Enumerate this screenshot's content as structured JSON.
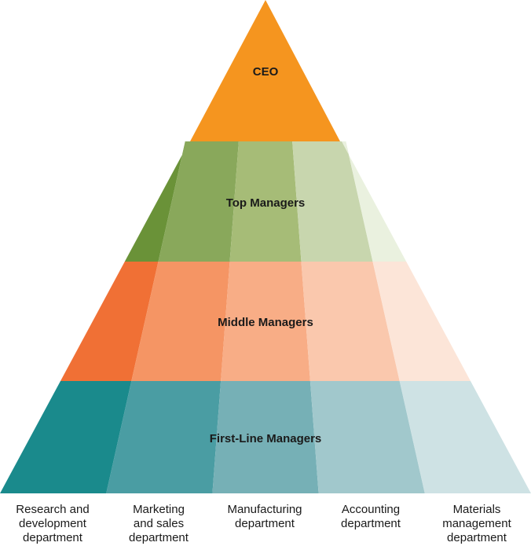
{
  "levels": [
    {
      "id": "ceo",
      "label": "CEO",
      "colors": [
        "#F5951F"
      ]
    },
    {
      "id": "top",
      "label": "Top Managers",
      "colors": [
        "#6A9238",
        "#89A85B",
        "#A6BC77",
        "#C8D6AE",
        "#EAF1DF"
      ]
    },
    {
      "id": "middle",
      "label": "Middle Managers",
      "colors": [
        "#F07035",
        "#F59564",
        "#F8AD86",
        "#FAC8AD",
        "#FCE5D8"
      ]
    },
    {
      "id": "first",
      "label": "First-Line Managers",
      "colors": [
        "#1A8A8C",
        "#4A9DA3",
        "#76B0B6",
        "#A1C8CC",
        "#CEE2E4"
      ]
    }
  ],
  "departments": [
    {
      "lines": [
        "Research and",
        "development",
        "department"
      ]
    },
    {
      "lines": [
        "Marketing",
        "and sales",
        "department"
      ]
    },
    {
      "lines": [
        "Manufacturing",
        "department"
      ]
    },
    {
      "lines": [
        "Accounting",
        "department"
      ]
    },
    {
      "lines": [
        "Materials",
        "management",
        "department"
      ]
    }
  ]
}
